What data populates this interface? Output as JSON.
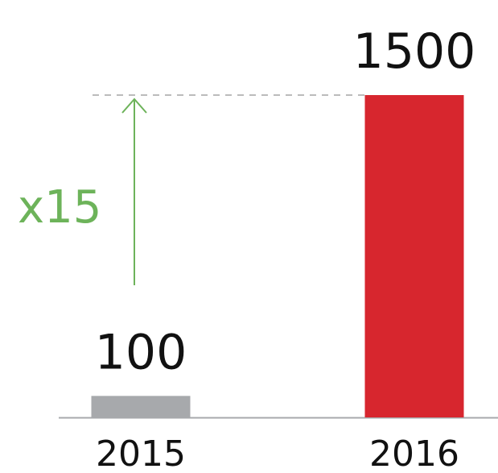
{
  "chart_data": {
    "type": "bar",
    "categories": [
      "2015",
      "2016"
    ],
    "values": [
      100,
      1500
    ],
    "colors": [
      "#a7a9ac",
      "#d7262e"
    ],
    "annotation": "x15"
  }
}
